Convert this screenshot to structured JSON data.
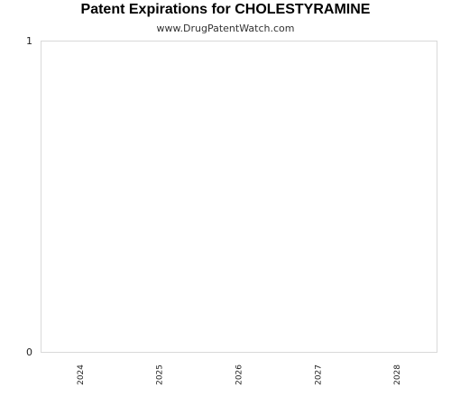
{
  "chart_data": {
    "type": "bar",
    "title": "Patent Expirations for CHOLESTYRAMINE",
    "subtitle": "www.DrugPatentWatch.com",
    "categories": [
      "2024",
      "2025",
      "2026",
      "2027",
      "2028"
    ],
    "values": [
      0,
      0,
      0,
      0,
      0
    ],
    "xlabel": "",
    "ylabel": "",
    "ylim": [
      0,
      1
    ],
    "yticks": [
      "0",
      "1"
    ],
    "grid": false,
    "plot_border_color": "#d9d9d9"
  }
}
